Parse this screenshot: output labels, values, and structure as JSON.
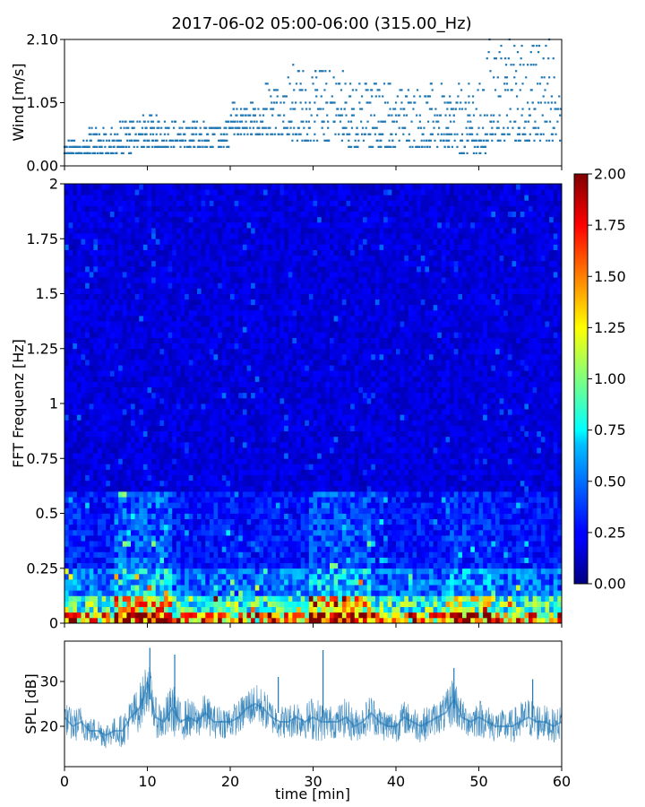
{
  "figure": {
    "title": "2017-06-02 05:00-06:00 (315.00_Hz)"
  },
  "chart_data": [
    {
      "type": "scatter",
      "name": "wind",
      "ylabel": "Wind [m/s]",
      "xlim": [
        0,
        60
      ],
      "ylim": [
        0,
        2.1
      ],
      "xticks": [
        0,
        10,
        20,
        30,
        40,
        50,
        60
      ],
      "yticks": [
        0,
        1.05,
        2.1
      ],
      "ytick_labels": [
        "0.00",
        "1.05",
        "2.10"
      ],
      "color": "#1f77b4",
      "x_step_min": 0.1,
      "value_step": 0.105,
      "levels_profile": [
        {
          "t0": 0,
          "t1": 3,
          "level_min": 0.21,
          "level_max": 0.42
        },
        {
          "t0": 3,
          "t1": 6,
          "level_min": 0.21,
          "level_max": 0.63
        },
        {
          "t0": 6,
          "t1": 8,
          "level_min": 0.21,
          "level_max": 0.74
        },
        {
          "t0": 8,
          "t1": 13,
          "level_min": 0.32,
          "level_max": 0.84
        },
        {
          "t0": 13,
          "t1": 20,
          "level_min": 0.32,
          "level_max": 0.74
        },
        {
          "t0": 20,
          "t1": 24,
          "level_min": 0.53,
          "level_max": 1.05
        },
        {
          "t0": 24,
          "t1": 27,
          "level_min": 0.53,
          "level_max": 1.47
        },
        {
          "t0": 27,
          "t1": 34,
          "level_min": 0.42,
          "level_max": 1.68
        },
        {
          "t0": 34,
          "t1": 40,
          "level_min": 0.32,
          "level_max": 1.47
        },
        {
          "t0": 40,
          "t1": 47,
          "level_min": 0.32,
          "level_max": 1.37
        },
        {
          "t0": 47,
          "t1": 51,
          "level_min": 0.21,
          "level_max": 1.37
        },
        {
          "t0": 51,
          "t1": 56,
          "level_min": 0.42,
          "level_max": 2.1
        },
        {
          "t0": 56,
          "t1": 60,
          "level_min": 0.42,
          "level_max": 2.1
        }
      ]
    },
    {
      "type": "heatmap",
      "name": "spectrogram",
      "ylabel": "FFT Frequenz [Hz]",
      "xlim": [
        0,
        60
      ],
      "ylim": [
        0,
        2
      ],
      "yticks": [
        0,
        0.25,
        0.5,
        0.75,
        1,
        1.25,
        1.5,
        1.75,
        2
      ],
      "ytick_labels": [
        "0",
        "0.25",
        "0.5",
        "0.75",
        "1",
        "1.25",
        "1.5",
        "1.75",
        "2"
      ],
      "colormap": "jet",
      "colorbar": {
        "vmin": 0,
        "vmax": 2,
        "ticks": [
          0,
          0.25,
          0.5,
          0.75,
          1,
          1.25,
          1.5,
          1.75,
          2
        ],
        "tick_labels": [
          "0.00",
          "0.25",
          "0.50",
          "0.75",
          "1.00",
          "1.25",
          "1.50",
          "1.75",
          "2.00"
        ]
      },
      "time_bins": 120,
      "freq_bins": 80,
      "background_level": 0.18,
      "low_freq_bands": [
        {
          "freq_max": 0.05,
          "level": 1.35
        },
        {
          "freq_max": 0.12,
          "level": 0.85
        },
        {
          "freq_max": 0.25,
          "level": 0.45
        },
        {
          "freq_max": 0.6,
          "level": 0.28
        }
      ],
      "energy_events": [
        {
          "t0": 6,
          "t1": 13,
          "gain": 1.5
        },
        {
          "t0": 29.5,
          "t1": 37,
          "gain": 1.4
        },
        {
          "t0": 46,
          "t1": 52,
          "gain": 1.2
        },
        {
          "t0": 0,
          "t1": 2,
          "gain": 1.1
        }
      ]
    },
    {
      "type": "line",
      "name": "spl",
      "xlabel": "time [min]",
      "ylabel": "SPL [dB]",
      "xlim": [
        0,
        60
      ],
      "ylim": [
        11,
        39
      ],
      "xticks": [
        0,
        10,
        20,
        30,
        40,
        50,
        60
      ],
      "yticks": [
        20,
        30
      ],
      "color": "#1f77b4",
      "x": [
        0,
        1,
        2,
        3,
        4,
        5,
        6,
        7,
        8,
        9,
        9.5,
        10,
        10.5,
        11,
        12,
        13,
        14,
        15,
        16,
        17,
        18,
        19,
        20,
        21,
        22,
        23,
        24,
        25,
        26,
        27,
        28,
        29,
        30,
        31,
        32,
        33,
        34,
        35,
        36,
        37,
        38,
        39,
        40,
        41,
        42,
        43,
        44,
        45,
        46,
        47,
        48,
        49,
        50,
        51,
        52,
        53,
        54,
        55,
        56,
        57,
        58,
        59,
        60
      ],
      "mid": [
        22,
        20,
        21,
        19,
        19,
        18,
        19,
        19,
        22,
        24,
        26,
        30,
        26,
        22,
        21,
        24,
        21,
        22,
        21,
        23,
        21,
        21,
        21,
        22,
        24,
        25,
        24,
        22,
        21,
        21,
        22,
        21,
        22,
        21,
        21,
        21,
        22,
        20,
        21,
        23,
        21,
        20,
        20,
        22,
        21,
        20,
        21,
        22,
        23,
        26,
        22,
        21,
        22,
        21,
        20,
        20,
        20,
        21,
        22,
        21,
        21,
        20,
        21
      ],
      "spread": [
        5,
        5,
        5,
        4,
        4,
        4,
        4,
        5,
        6,
        7,
        8,
        8,
        7,
        6,
        6,
        8,
        6,
        6,
        5,
        6,
        5,
        5,
        5,
        5,
        6,
        6,
        6,
        5,
        5,
        5,
        6,
        5,
        7,
        6,
        5,
        5,
        6,
        5,
        5,
        6,
        5,
        5,
        5,
        5,
        5,
        5,
        5,
        5,
        6,
        8,
        5,
        5,
        6,
        5,
        5,
        5,
        5,
        6,
        6,
        6,
        5,
        5,
        5
      ],
      "spikes": [
        {
          "x": 10.3,
          "ymin": 26,
          "ymax": 37.5
        },
        {
          "x": 13.3,
          "ymin": 24,
          "ymax": 36
        },
        {
          "x": 31.2,
          "ymin": 22,
          "ymax": 37
        },
        {
          "x": 47.0,
          "ymin": 24,
          "ymax": 33
        },
        {
          "x": 25.8,
          "ymin": 23,
          "ymax": 31
        },
        {
          "x": 56.5,
          "ymin": 22,
          "ymax": 30.5
        }
      ]
    }
  ]
}
